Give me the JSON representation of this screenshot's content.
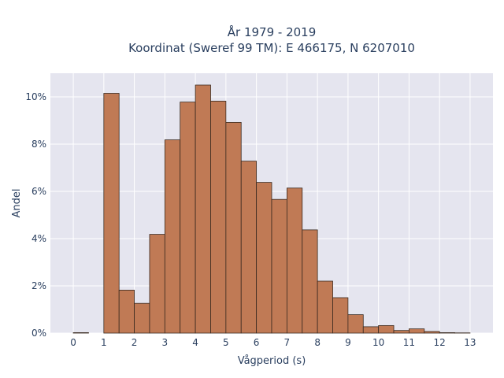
{
  "chart_data": {
    "type": "bar",
    "title_line1": "År 1979 - 2019",
    "title_line2": "Koordinat (Sweref 99 TM): E 466175, N 6207010",
    "xlabel": "Vågperiod (s)",
    "ylabel": "Andel",
    "xlim": [
      -0.75,
      13.75
    ],
    "ylim": [
      0,
      11
    ],
    "x_ticks": [
      0,
      1,
      2,
      3,
      4,
      5,
      6,
      7,
      8,
      9,
      10,
      11,
      12,
      13
    ],
    "y_ticks": [
      0,
      2,
      4,
      6,
      8,
      10
    ],
    "y_tick_labels": [
      "0%",
      "2%",
      "4%",
      "6%",
      "8%",
      "10%"
    ],
    "bin_width": 0.5,
    "bins_start": [
      0,
      0.5,
      1,
      1.5,
      2,
      2.5,
      3,
      3.5,
      4,
      4.5,
      5,
      5.5,
      6,
      6.5,
      7,
      7.5,
      8,
      8.5,
      9,
      9.5,
      10,
      10.5,
      11,
      11.5,
      12,
      12.5
    ],
    "values": [
      0.02,
      0,
      10.15,
      1.82,
      1.26,
      4.18,
      8.18,
      9.78,
      10.5,
      9.82,
      8.92,
      7.28,
      6.38,
      5.66,
      6.14,
      4.37,
      2.2,
      1.5,
      0.78,
      0.27,
      0.32,
      0.11,
      0.18,
      0.07,
      0.02,
      0.01
    ],
    "bar_color": "#c07a55",
    "bar_edge_color": "#3a2a20",
    "plot_bg": "#e5e5ef",
    "grid": true
  }
}
